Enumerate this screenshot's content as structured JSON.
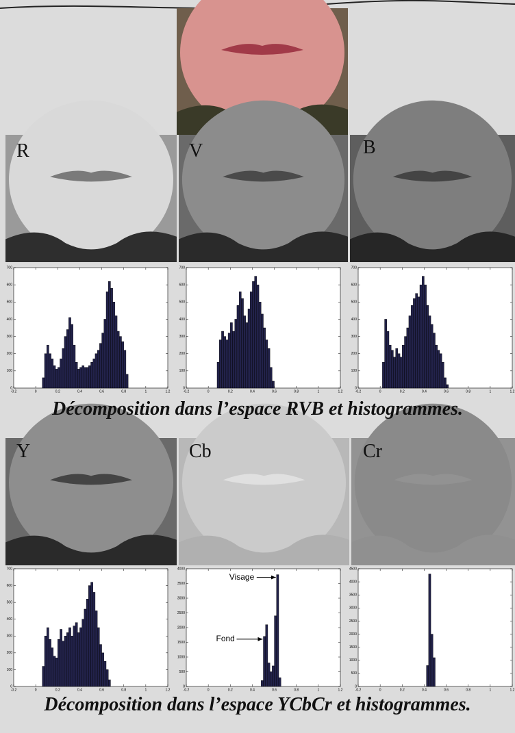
{
  "panel_labels": [
    "R",
    "V",
    "B",
    "Y",
    "Cb",
    "Cr"
  ],
  "captions": [
    "Décomposition dans l’espace RVB et histogrammes.",
    "Décomposition dans l’espace YCbCr et histogrammes."
  ],
  "chart_data": [
    {
      "type": "histogram",
      "color": "#22224a",
      "bins": [
        0.06,
        0.08,
        0.1,
        0.12,
        0.14,
        0.16,
        0.18,
        0.2,
        0.22,
        0.24,
        0.26,
        0.28,
        0.3,
        0.32,
        0.34,
        0.36,
        0.38,
        0.4,
        0.42,
        0.44,
        0.46,
        0.48,
        0.5,
        0.52,
        0.54,
        0.56,
        0.58,
        0.6,
        0.62,
        0.64,
        0.66,
        0.68,
        0.7,
        0.72,
        0.74,
        0.76,
        0.78,
        0.8,
        0.82,
        0.84
      ],
      "values": [
        60,
        200,
        250,
        200,
        170,
        130,
        110,
        120,
        170,
        230,
        300,
        340,
        410,
        370,
        250,
        150,
        110,
        120,
        130,
        120,
        120,
        130,
        150,
        170,
        200,
        220,
        260,
        320,
        400,
        560,
        620,
        580,
        500,
        420,
        330,
        300,
        270,
        220,
        80
      ],
      "xlim": [
        -0.2,
        1.2
      ],
      "xticks": [
        -0.2,
        0,
        0.2,
        0.4,
        0.6,
        0.8,
        1,
        1.2
      ],
      "ylim": [
        0,
        700
      ],
      "yticks": [
        0,
        100,
        200,
        300,
        400,
        500,
        600,
        700
      ]
    },
    {
      "type": "histogram",
      "color": "#22224a",
      "bins": [
        0.08,
        0.1,
        0.12,
        0.14,
        0.16,
        0.18,
        0.2,
        0.22,
        0.24,
        0.26,
        0.28,
        0.3,
        0.32,
        0.34,
        0.36,
        0.38,
        0.4,
        0.42,
        0.44,
        0.46,
        0.48,
        0.5,
        0.52,
        0.54,
        0.56,
        0.58,
        0.6
      ],
      "values": [
        150,
        280,
        330,
        300,
        280,
        320,
        380,
        330,
        400,
        480,
        560,
        520,
        420,
        380,
        460,
        560,
        620,
        650,
        600,
        500,
        430,
        350,
        280,
        230,
        120,
        40
      ],
      "xlim": [
        -0.2,
        1.2
      ],
      "xticks": [
        -0.2,
        0,
        0.2,
        0.4,
        0.6,
        0.8,
        1,
        1.2
      ],
      "ylim": [
        0,
        700
      ],
      "yticks": [
        0,
        100,
        200,
        300,
        400,
        500,
        600,
        700
      ]
    },
    {
      "type": "histogram",
      "color": "#22224a",
      "bins": [
        0.02,
        0.04,
        0.06,
        0.08,
        0.1,
        0.12,
        0.14,
        0.16,
        0.18,
        0.2,
        0.22,
        0.24,
        0.26,
        0.28,
        0.3,
        0.32,
        0.34,
        0.36,
        0.38,
        0.4,
        0.42,
        0.44,
        0.46,
        0.48,
        0.5,
        0.52,
        0.54,
        0.56,
        0.58,
        0.6,
        0.62
      ],
      "values": [
        150,
        400,
        330,
        250,
        220,
        180,
        230,
        200,
        180,
        250,
        300,
        350,
        420,
        480,
        520,
        550,
        530,
        600,
        650,
        600,
        480,
        420,
        370,
        320,
        250,
        220,
        200,
        150,
        60,
        20
      ],
      "xlim": [
        -0.2,
        1.2
      ],
      "xticks": [
        -0.2,
        0,
        0.2,
        0.4,
        0.6,
        0.8,
        1,
        1.2
      ],
      "ylim": [
        0,
        700
      ],
      "yticks": [
        0,
        100,
        200,
        300,
        400,
        500,
        600,
        700
      ]
    },
    {
      "type": "histogram",
      "color": "#22224a",
      "bins": [
        0.06,
        0.08,
        0.1,
        0.12,
        0.14,
        0.16,
        0.18,
        0.2,
        0.22,
        0.24,
        0.26,
        0.28,
        0.3,
        0.32,
        0.34,
        0.36,
        0.38,
        0.4,
        0.42,
        0.44,
        0.46,
        0.48,
        0.5,
        0.52,
        0.54,
        0.56,
        0.58,
        0.6,
        0.62,
        0.64,
        0.66,
        0.68
      ],
      "values": [
        120,
        300,
        350,
        280,
        230,
        180,
        170,
        280,
        340,
        270,
        300,
        320,
        350,
        300,
        360,
        380,
        320,
        350,
        400,
        460,
        520,
        600,
        620,
        560,
        450,
        350,
        250,
        200,
        150,
        100,
        40
      ],
      "xlim": [
        -0.2,
        1.2
      ],
      "xticks": [
        -0.2,
        0,
        0.2,
        0.4,
        0.6,
        0.8,
        1,
        1.2
      ],
      "ylim": [
        0,
        700
      ],
      "yticks": [
        0,
        100,
        200,
        300,
        400,
        500,
        600,
        700
      ]
    },
    {
      "type": "histogram",
      "color": "#22224a",
      "bins": [
        0.48,
        0.5,
        0.52,
        0.54,
        0.56,
        0.58,
        0.6,
        0.62,
        0.64,
        0.66
      ],
      "values": [
        200,
        1700,
        2100,
        800,
        500,
        700,
        2400,
        3800,
        300
      ],
      "xlim": [
        -0.2,
        1.2
      ],
      "xticks": [
        -0.2,
        0,
        0.2,
        0.4,
        0.6,
        0.8,
        1,
        1.2
      ],
      "ylim": [
        0,
        4000
      ],
      "yticks": [
        0,
        500,
        1000,
        1500,
        2000,
        2500,
        3000,
        3500,
        4000
      ],
      "annotations": [
        {
          "text": "Visage"
        },
        {
          "text": "Fond"
        }
      ]
    },
    {
      "type": "histogram",
      "color": "#22224a",
      "bins": [
        0.42,
        0.44,
        0.46,
        0.48,
        0.5
      ],
      "values": [
        800,
        4300,
        2000,
        1100
      ],
      "xlim": [
        -0.2,
        1.2
      ],
      "xticks": [
        -0.2,
        0,
        0.2,
        0.4,
        0.6,
        0.8,
        1,
        1.2
      ],
      "ylim": [
        0,
        4500
      ],
      "yticks": [
        0,
        500,
        1000,
        1500,
        2000,
        2500,
        3000,
        3500,
        4000,
        4500
      ]
    }
  ]
}
